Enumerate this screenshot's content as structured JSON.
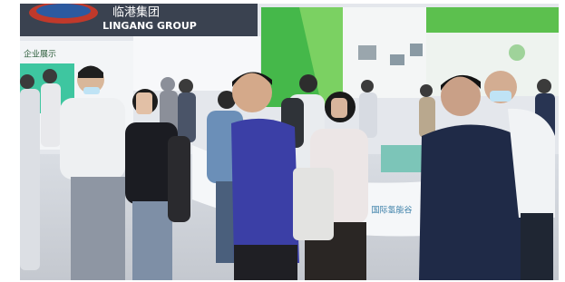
{
  "banner": {
    "chinese": "临港集团",
    "english": "LINGANG GROUP"
  },
  "signs": {
    "left_panel": "企业展示",
    "booth": "国际氢能谷"
  }
}
